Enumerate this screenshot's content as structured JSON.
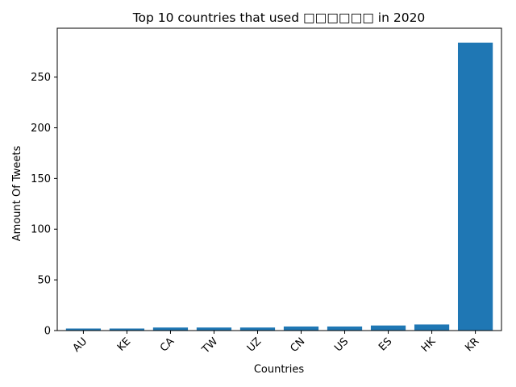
{
  "chart_data": {
    "type": "bar",
    "title": "Top 10 countries that used □□□□□□ in 2020",
    "xlabel": "Countries",
    "ylabel": "Amount Of Tweets",
    "categories": [
      "AU",
      "KE",
      "CA",
      "TW",
      "UZ",
      "CN",
      "US",
      "ES",
      "HK",
      "KR"
    ],
    "values": [
      2,
      2,
      3,
      3,
      3,
      4,
      4,
      5,
      6,
      284
    ],
    "ylim": [
      0,
      298.2
    ],
    "yticks": [
      0,
      50,
      100,
      150,
      200,
      250
    ],
    "xtick_rotation": 45,
    "bar_color": "#1f77b4",
    "grid": false,
    "legend": "none"
  }
}
